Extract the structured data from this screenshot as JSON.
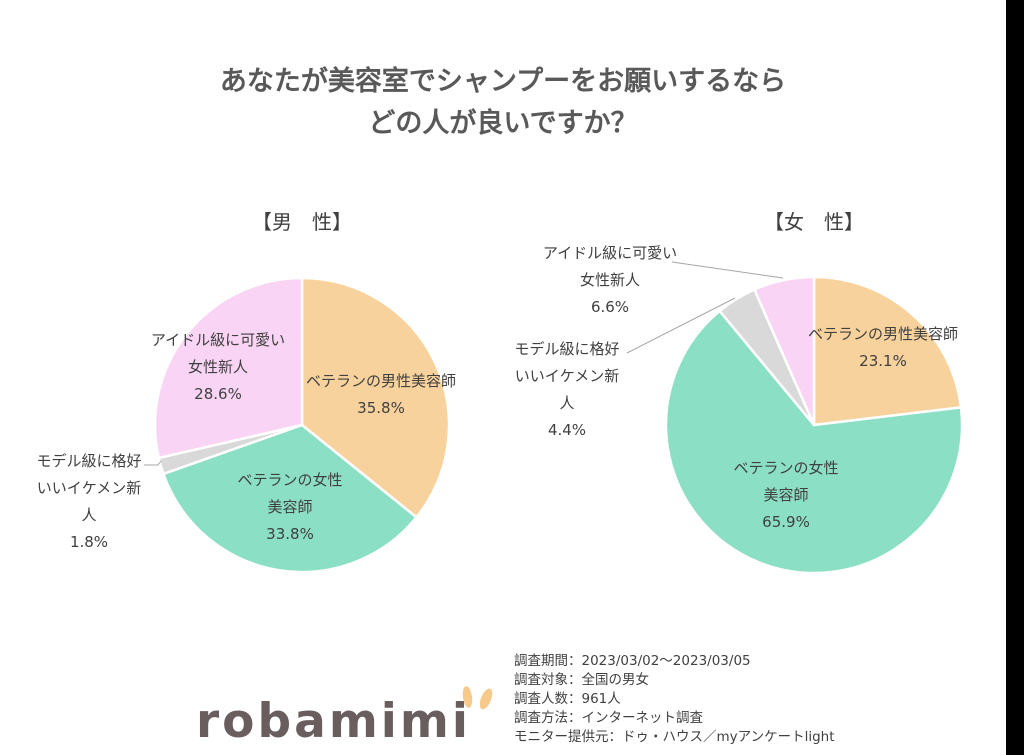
{
  "title": {
    "line1": "あなたが美容室でシャンプーをお願いするなら",
    "line2": "どの人が良いですか？"
  },
  "colors": {
    "veteran_male": "#F8D29C",
    "veteran_female": "#8BDFC4",
    "model_ikemen": "#D9D9D9",
    "idol_newcomer": "#F9D4F4",
    "title_text": "#595959",
    "logo_text": "#6A5D5D",
    "logo_ear": "#F7C98A"
  },
  "chart_data": [
    {
      "type": "pie",
      "title": "【男　性】",
      "slices": [
        {
          "label": "ベテランの男性美容師",
          "value": 35.8,
          "display": "35.8%",
          "color": "#F8D29C"
        },
        {
          "label": "ベテランの女性美容師",
          "value": 33.8,
          "display": "33.8%",
          "color": "#8BDFC4"
        },
        {
          "label": "モデル級に格好いいイケメン新人",
          "value": 1.8,
          "display": "1.8%",
          "color": "#D9D9D9"
        },
        {
          "label": "アイドル級に可愛い女性新人",
          "value": 28.6,
          "display": "28.6%",
          "color": "#F9D4F4"
        }
      ],
      "start_angle": "12 o'clock, clockwise"
    },
    {
      "type": "pie",
      "title": "【女　性】",
      "slices": [
        {
          "label": "ベテランの男性美容師",
          "value": 23.1,
          "display": "23.1%",
          "color": "#F8D29C"
        },
        {
          "label": "ベテランの女性美容師",
          "value": 65.9,
          "display": "65.9%",
          "color": "#8BDFC4"
        },
        {
          "label": "モデル級に格好いいイケメン新人",
          "value": 4.4,
          "display": "4.4%",
          "color": "#D9D9D9"
        },
        {
          "label": "アイドル級に可愛い女性新人",
          "value": 6.6,
          "display": "6.6%",
          "color": "#F9D4F4"
        }
      ],
      "start_angle": "12 o'clock, clockwise"
    }
  ],
  "male": {
    "heading": "【男　性】",
    "labels": {
      "veteran_male": {
        "l1": "ベテランの男性美容師",
        "pct": "35.8%"
      },
      "veteran_female": {
        "l1": "ベテランの女性",
        "l2": "美容師",
        "pct": "33.8%"
      },
      "model": {
        "l1": "モデル級に格好",
        "l2": "いいイケメン新",
        "l3": "人",
        "pct": "1.8%"
      },
      "idol": {
        "l1": "アイドル級に可愛い",
        "l2": "女性新人",
        "pct": "28.6%"
      }
    }
  },
  "female": {
    "heading": "【女　性】",
    "labels": {
      "veteran_male": {
        "l1": "ベテランの男性美容師",
        "pct": "23.1%"
      },
      "veteran_female": {
        "l1": "ベテランの女性",
        "l2": "美容師",
        "pct": "65.9%"
      },
      "model": {
        "l1": "モデル級に格好",
        "l2": "いいイケメン新",
        "l3": "人",
        "pct": "4.4%"
      },
      "idol": {
        "l1": "アイドル級に可愛い",
        "l2": "女性新人",
        "pct": "6.6%"
      }
    }
  },
  "survey_info": [
    "調査期間：2023/03/02～2023/03/05",
    "調査対象：全国の男女",
    "調査人数：961人",
    "調査方法：インターネット調査",
    "モニター提供元：ドゥ・ハウス／myアンケートlight"
  ],
  "logo": {
    "text": "robamimi"
  }
}
